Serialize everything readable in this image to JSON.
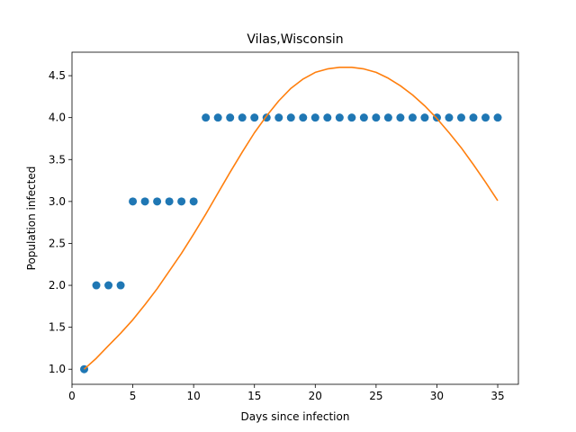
{
  "chart_data": {
    "type": "scatter",
    "title": "Vilas,Wisconsin",
    "xlabel": "Days since infection",
    "ylabel": "Population infected",
    "xlim": [
      0,
      36.7
    ],
    "ylim": [
      0.82,
      4.78
    ],
    "xticks": [
      0,
      5,
      10,
      15,
      20,
      25,
      30,
      35
    ],
    "yticks": [
      1.0,
      1.5,
      2.0,
      2.5,
      3.0,
      3.5,
      4.0,
      4.5
    ],
    "xtick_labels": [
      "0",
      "5",
      "10",
      "15",
      "20",
      "25",
      "30",
      "35"
    ],
    "ytick_labels": [
      "1.0",
      "1.5",
      "2.0",
      "2.5",
      "3.0",
      "3.5",
      "4.0",
      "4.5"
    ],
    "grid": false,
    "series": [
      {
        "kind": "scatter",
        "color": "#1f77b4",
        "x": [
          1,
          2,
          3,
          4,
          5,
          6,
          7,
          8,
          9,
          10,
          11,
          12,
          13,
          14,
          15,
          16,
          17,
          18,
          19,
          20,
          21,
          22,
          23,
          24,
          25,
          26,
          27,
          28,
          29,
          30,
          31,
          32,
          33,
          34,
          35
        ],
        "y": [
          1,
          2,
          2,
          2,
          3,
          3,
          3,
          3,
          3,
          3,
          4,
          4,
          4,
          4,
          4,
          4,
          4,
          4,
          4,
          4,
          4,
          4,
          4,
          4,
          4,
          4,
          4,
          4,
          4,
          4,
          4,
          4,
          4,
          4,
          4
        ]
      },
      {
        "kind": "line",
        "color": "#ff7f0e",
        "x": [
          1,
          2,
          3,
          4,
          5,
          6,
          7,
          8,
          9,
          10,
          11,
          12,
          13,
          14,
          15,
          16,
          17,
          18,
          19,
          20,
          21,
          22,
          23,
          24,
          25,
          26,
          27,
          28,
          29,
          30,
          31,
          32,
          33,
          34,
          35
        ],
        "y": [
          1.0,
          1.13,
          1.28,
          1.43,
          1.59,
          1.77,
          1.96,
          2.17,
          2.38,
          2.61,
          2.85,
          3.1,
          3.35,
          3.59,
          3.82,
          4.02,
          4.2,
          4.35,
          4.46,
          4.54,
          4.58,
          4.6,
          4.6,
          4.58,
          4.54,
          4.47,
          4.38,
          4.27,
          4.14,
          3.99,
          3.82,
          3.64,
          3.44,
          3.23,
          3.01
        ]
      }
    ]
  }
}
